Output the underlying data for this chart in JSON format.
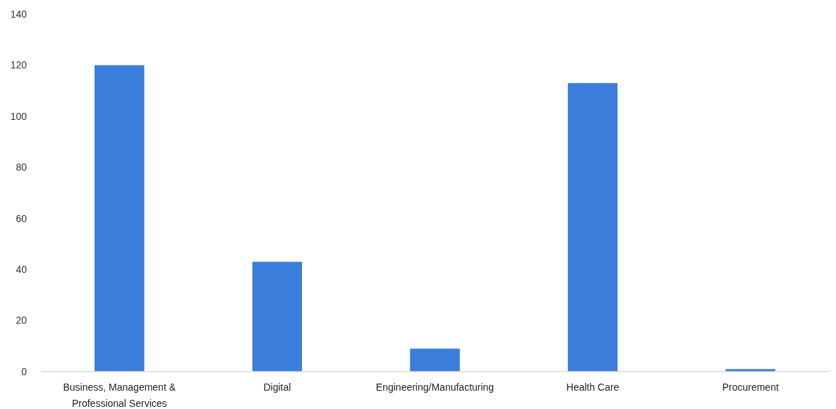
{
  "chart_data": {
    "type": "bar",
    "categories": [
      "Business, Management & Professional Services",
      "Digital",
      "Engineering/Manufacturing",
      "Health Care",
      "Procurement"
    ],
    "values": [
      120,
      43,
      9,
      113,
      1
    ],
    "color": "#3a7ddb",
    "ylim": [
      0,
      140
    ],
    "yticks": [
      0,
      20,
      40,
      60,
      80,
      100,
      120,
      140
    ],
    "grid": false
  }
}
